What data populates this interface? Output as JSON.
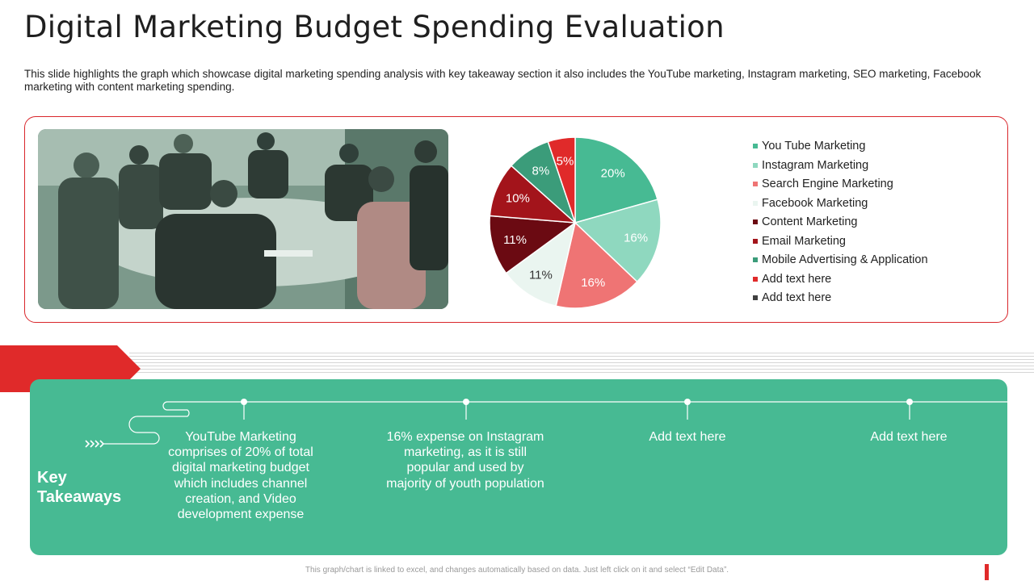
{
  "header": {
    "title": "Digital Marketing Budget Spending Evaluation",
    "subtitle": "This slide highlights the graph which showcase digital marketing spending analysis with key takeaway section it also includes the YouTube marketing, Instagram marketing, SEO marketing, Facebook marketing with content marketing spending."
  },
  "chart_data": {
    "type": "pie",
    "categories": [
      "You Tube Marketing",
      "Instagram Marketing",
      "Search Engine Marketing",
      "Facebook Marketing",
      "Content Marketing",
      "Email Marketing",
      "Mobile Advertising & Application",
      "Add text here",
      "Add text here"
    ],
    "values": [
      20,
      16,
      16,
      11,
      11,
      10,
      8,
      5,
      0
    ],
    "labels": [
      "20%",
      "16%",
      "16%",
      "11%",
      "11%",
      "10%",
      "8%",
      "5%",
      ""
    ],
    "colors": [
      "#47ba93",
      "#8fd8bf",
      "#ef7474",
      "#eaf5f0",
      "#6b0a12",
      "#a3141b",
      "#3b9c7a",
      "#e02a2a",
      "#404040"
    ],
    "label_colors": [
      "#ffffff",
      "#ffffff",
      "#ffffff",
      "#333333",
      "#ffffff",
      "#ffffff",
      "#ffffff",
      "#ffffff",
      "#ffffff"
    ],
    "legend_position": "right"
  },
  "takeaways": {
    "title": "Key Takeaways",
    "items": [
      "YouTube Marketing comprises of 20% of total digital marketing budget which includes channel creation, and Video development expense",
      "16% expense on Instagram marketing, as it is still popular and used by majority of youth population",
      "Add text here",
      "Add text here"
    ]
  },
  "footer": {
    "note": "This graph/chart is linked to excel, and changes automatically based on data. Just left click on it and select “Edit Data”."
  },
  "colors": {
    "accent_red": "#e02a2a",
    "panel_green": "#47ba93",
    "panel_border": "#d9262b"
  }
}
